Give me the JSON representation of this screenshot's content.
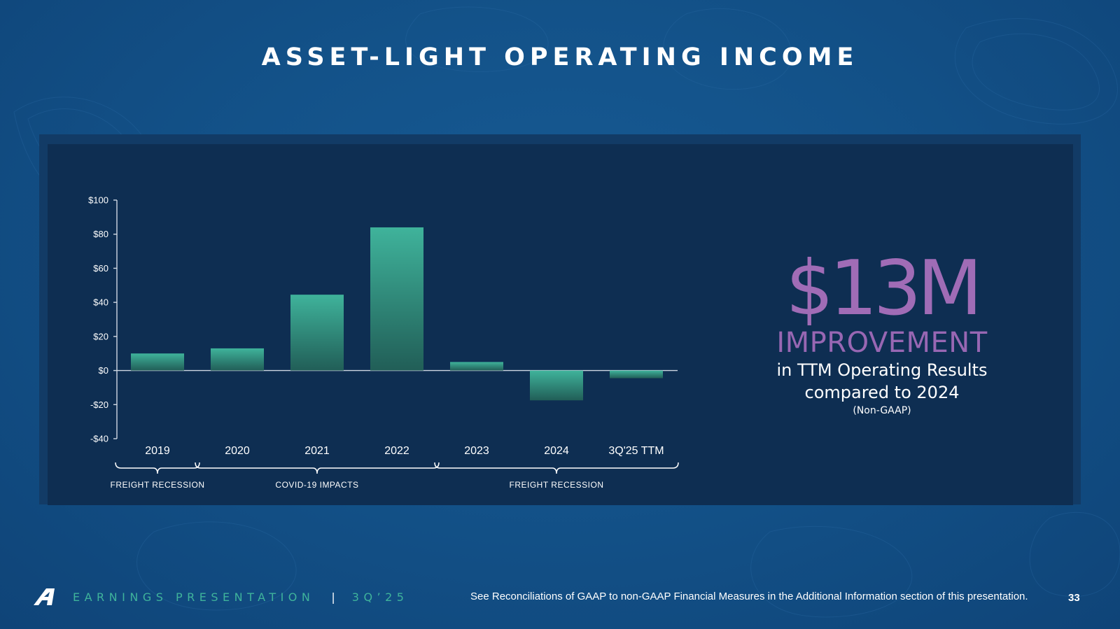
{
  "slide": {
    "title": "ASSET-LIGHT OPERATING INCOME",
    "callout": {
      "amount": "$13M",
      "label": "IMPROVEMENT",
      "line1": "in TTM Operating Results",
      "line2": "compared to 2024",
      "note": "(Non-GAAP)"
    },
    "footer": {
      "label": "EARNINGS PRESENTATION",
      "separator": "|",
      "period": "3Q’25",
      "footnote": "See Reconciliations of GAAP to non-GAAP Financial Measures in the Additional Information section of this presentation.",
      "page": "33"
    }
  },
  "colors": {
    "bar_top": "#3fb39b",
    "bar_bottom": "#215e57",
    "callout": "#a06cb6",
    "footer_accent": "#3fb39b"
  },
  "chart_data": {
    "type": "bar",
    "title": "",
    "xlabel": "",
    "ylabel": "",
    "categories": [
      "2019",
      "2020",
      "2021",
      "2022",
      "2023",
      "2024",
      "3Q'25 TTM"
    ],
    "values": [
      10,
      13,
      44.5,
      84,
      5,
      -17.5,
      -4.5
    ],
    "ylim": [
      -40,
      100
    ],
    "yticks": [
      100,
      80,
      60,
      40,
      20,
      0,
      -20,
      -40
    ],
    "ytick_labels": [
      "$100",
      "$80",
      "$60",
      "$40",
      "$20",
      "$0",
      "-$20",
      "-$40"
    ],
    "grid": false,
    "annotations": [
      {
        "label": "FREIGHT RECESSION",
        "from": 0,
        "to": 0
      },
      {
        "label": "COVID-19 IMPACTS",
        "from": 1,
        "to": 3
      },
      {
        "label": "FREIGHT RECESSION",
        "from": 4,
        "to": 6
      }
    ]
  }
}
